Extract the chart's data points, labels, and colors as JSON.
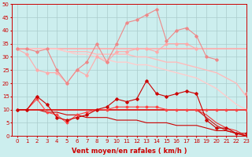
{
  "x": [
    0,
    1,
    2,
    3,
    4,
    5,
    6,
    7,
    8,
    9,
    10,
    11,
    12,
    13,
    14,
    15,
    16,
    17,
    18,
    19,
    20,
    21,
    22,
    23
  ],
  "series": [
    {
      "label": "rafales_peak",
      "y": [
        33,
        33,
        32,
        33,
        25,
        20,
        25,
        28,
        35,
        28,
        35,
        43,
        44,
        46,
        48,
        36,
        40,
        41,
        38,
        30,
        29,
        null,
        null,
        16
      ],
      "color": "#ee8888",
      "lw": 0.8,
      "marker": "D",
      "ms": 1.8,
      "zorder": 4
    },
    {
      "label": "rafales_flat1",
      "y": [
        33,
        33,
        33,
        33,
        33,
        33,
        33,
        33,
        33,
        33,
        33,
        33,
        33,
        33,
        33,
        33,
        33,
        33,
        33,
        33,
        33,
        33,
        33,
        33
      ],
      "color": "#ffaaaa",
      "lw": 1.2,
      "marker": null,
      "ms": 0,
      "zorder": 2
    },
    {
      "label": "rafales_lower",
      "y": [
        33,
        31,
        25,
        24,
        24,
        20,
        25,
        23,
        30,
        28,
        32,
        32,
        33,
        33,
        32,
        35,
        35,
        35,
        33,
        null,
        null,
        null,
        null,
        null
      ],
      "color": "#ffaaaa",
      "lw": 0.8,
      "marker": "D",
      "ms": 1.8,
      "zorder": 3
    },
    {
      "label": "rafales_decline",
      "y": [
        33,
        33,
        33,
        33,
        33,
        32,
        32,
        32,
        31,
        31,
        31,
        31,
        30,
        30,
        29,
        28,
        28,
        27,
        26,
        25,
        24,
        22,
        20,
        15
      ],
      "color": "#ffbbbb",
      "lw": 1.0,
      "marker": null,
      "ms": 0,
      "zorder": 2
    },
    {
      "label": "rafales_decline2",
      "y": [
        33,
        33,
        33,
        33,
        33,
        32,
        31,
        31,
        30,
        29,
        28,
        28,
        27,
        27,
        26,
        25,
        24,
        23,
        22,
        20,
        18,
        15,
        12,
        10
      ],
      "color": "#ffcccc",
      "lw": 1.0,
      "marker": null,
      "ms": 0,
      "zorder": 2
    },
    {
      "label": "moyen_peak",
      "y": [
        10,
        10,
        15,
        12,
        7,
        6,
        7,
        8,
        10,
        11,
        14,
        13,
        14,
        21,
        16,
        15,
        16,
        17,
        16,
        6,
        3,
        3,
        1,
        1
      ],
      "color": "#cc0000",
      "lw": 0.8,
      "marker": "D",
      "ms": 1.8,
      "zorder": 5
    },
    {
      "label": "moyen_flat",
      "y": [
        10,
        10,
        10,
        10,
        10,
        10,
        10,
        10,
        10,
        10,
        10,
        10,
        10,
        10,
        10,
        10,
        10,
        10,
        10,
        10,
        10,
        10,
        10,
        10
      ],
      "color": "#dd2222",
      "lw": 1.2,
      "marker": null,
      "ms": 0,
      "zorder": 3
    },
    {
      "label": "moyen_lower",
      "y": [
        10,
        10,
        14,
        9,
        8,
        5,
        8,
        9,
        10,
        10,
        11,
        11,
        11,
        11,
        11,
        10,
        10,
        10,
        10,
        10,
        10,
        10,
        10,
        10
      ],
      "color": "#ff4444",
      "lw": 0.8,
      "marker": "D",
      "ms": 1.5,
      "zorder": 4
    },
    {
      "label": "moyen_decline1",
      "y": [
        10,
        10,
        10,
        10,
        10,
        10,
        10,
        10,
        10,
        10,
        10,
        10,
        10,
        10,
        10,
        10,
        10,
        10,
        10,
        7,
        4,
        2,
        1,
        0
      ],
      "color": "#cc1111",
      "lw": 0.8,
      "marker": null,
      "ms": 0,
      "zorder": 2
    },
    {
      "label": "moyen_decline2",
      "y": [
        10,
        10,
        10,
        10,
        10,
        10,
        10,
        10,
        10,
        10,
        10,
        10,
        10,
        10,
        10,
        10,
        10,
        10,
        10,
        8,
        5,
        3,
        2,
        0
      ],
      "color": "#ee3333",
      "lw": 0.8,
      "marker": null,
      "ms": 0,
      "zorder": 2
    },
    {
      "label": "moyen_decline3",
      "y": [
        10,
        10,
        10,
        9,
        9,
        8,
        8,
        7,
        7,
        7,
        6,
        6,
        6,
        5,
        5,
        5,
        4,
        4,
        4,
        3,
        2,
        2,
        1,
        0
      ],
      "color": "#cc0000",
      "lw": 0.8,
      "marker": null,
      "ms": 0,
      "zorder": 2
    }
  ],
  "xlabel": "Vent moyen/en rafales ( km/h )",
  "xlim": [
    -0.5,
    23
  ],
  "ylim": [
    0,
    50
  ],
  "yticks": [
    0,
    5,
    10,
    15,
    20,
    25,
    30,
    35,
    40,
    45,
    50
  ],
  "xticks": [
    0,
    1,
    2,
    3,
    4,
    5,
    6,
    7,
    8,
    9,
    10,
    11,
    12,
    13,
    14,
    15,
    16,
    17,
    18,
    19,
    20,
    21,
    22,
    23
  ],
  "bg_color": "#cceeee",
  "grid_color": "#aacccc",
  "xlabel_fontsize": 6,
  "tick_fontsize": 5
}
